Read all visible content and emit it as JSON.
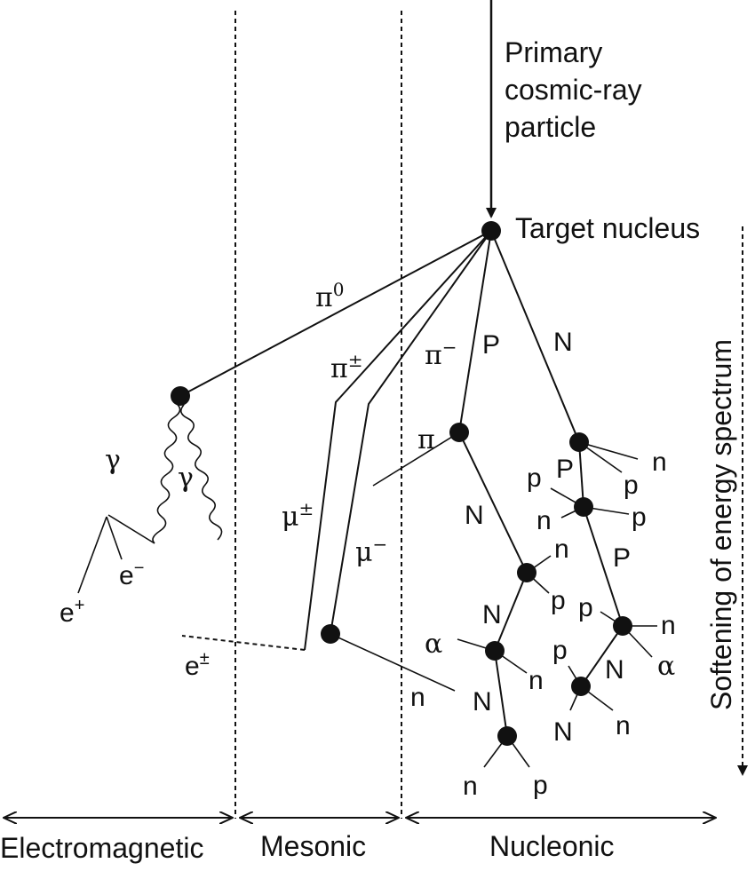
{
  "primary": {
    "line1": "Primary",
    "line2": "cosmic-ray",
    "line3": "particle"
  },
  "target": "Target nucleus",
  "softening": "Softening of energy spectrum",
  "regions": {
    "electromagnetic": "Electromagnetic",
    "mesonic": "Mesonic",
    "nucleonic": "Nucleonic"
  },
  "labels": {
    "pi0_base": "π",
    "pi0_sup": "0",
    "pipm_base": "π",
    "pipm_sup": "±",
    "pim_base": "π",
    "pim_sup": "−",
    "mupm_base": "μ",
    "mupm_sup": "±",
    "mum_base": "μ",
    "mum_sup": "−",
    "gamma": "γ",
    "ep_base": "e",
    "ep_sup": "+",
    "em_base": "e",
    "em_sup": "−",
    "epm_base": "e",
    "epm_sup": "±",
    "pi": "π",
    "alpha": "α",
    "P": "P",
    "N": "N",
    "p": "p",
    "n": "n"
  }
}
